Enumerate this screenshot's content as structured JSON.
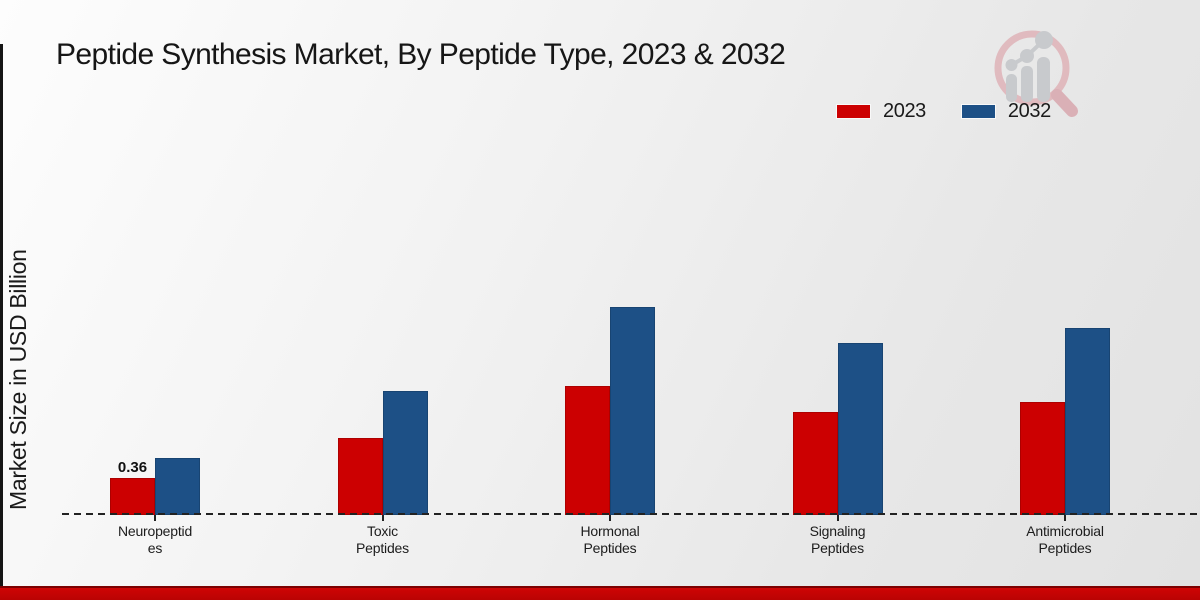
{
  "title": "Peptide Synthesis Market, By Peptide Type, 2023 & 2032",
  "ylabel": "Market Size in USD Billion",
  "legend": [
    {
      "label": "2023",
      "color": "#cc0001"
    },
    {
      "label": "2032",
      "color": "#1d5086"
    }
  ],
  "colors": {
    "bar_2023": "#cc0001",
    "bar_2032": "#1d5086",
    "footer_red": "#c40404",
    "footer_dark_red": "#7c0101",
    "text": "#1a1a1a"
  },
  "watermark": {
    "icon": "magnifier-growth-chart-logo"
  },
  "chart_data": {
    "type": "bar",
    "title": "Peptide Synthesis Market, By Peptide Type, 2023 & 2032",
    "xlabel": "",
    "ylabel": "Market Size in USD Billion",
    "categories": [
      "Neuropeptides",
      "Toxic Peptides",
      "Hormonal Peptides",
      "Signaling Peptides",
      "Antimicrobial Peptides"
    ],
    "category_display_lines": [
      [
        "Neuropeptid",
        "es"
      ],
      [
        "Toxic",
        "Peptides"
      ],
      [
        "Hormonal",
        "Peptides"
      ],
      [
        "Signaling",
        "Peptides"
      ],
      [
        "Antimicrobial",
        "Peptides"
      ]
    ],
    "series": [
      {
        "name": "2023",
        "color": "#cc0001",
        "values": [
          0.36,
          0.75,
          1.25,
          1.0,
          1.1
        ]
      },
      {
        "name": "2032",
        "color": "#1d5086",
        "values": [
          0.55,
          1.2,
          2.02,
          1.67,
          1.82
        ]
      }
    ],
    "annotations": [
      {
        "category": "Neuropeptides",
        "series": "2023",
        "text": "0.36"
      }
    ],
    "ylim": [
      0,
      2.2
    ],
    "grid": false,
    "y_axis_ticks_visible": false,
    "baseline_style": "dashed",
    "legend_position": "top-right"
  }
}
